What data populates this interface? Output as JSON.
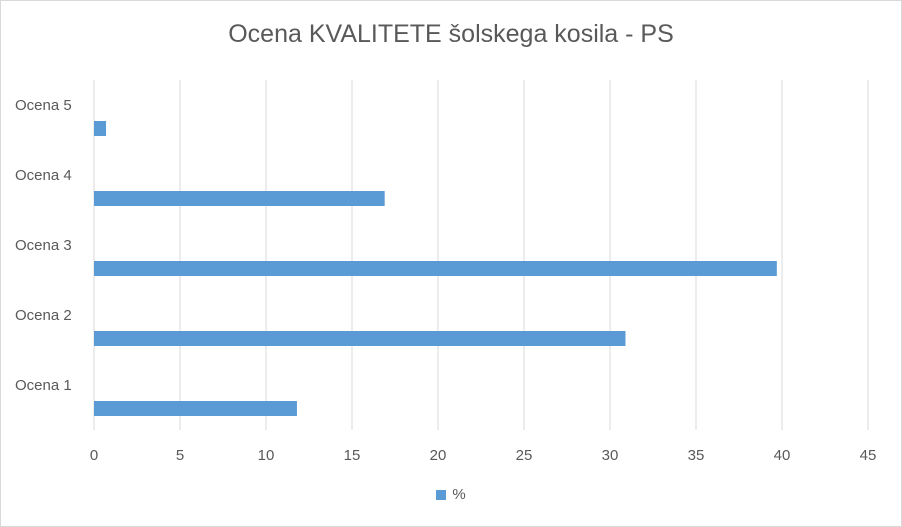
{
  "chart_data": {
    "type": "bar",
    "orientation": "horizontal",
    "title": "Ocena KVALITETE šolskega kosila - PS",
    "categories": [
      "Ocena 1",
      "Ocena 2",
      "Ocena 3",
      "Ocena 4",
      "Ocena 5"
    ],
    "series": [
      {
        "name": "%",
        "values": [
          11.8,
          30.9,
          39.7,
          16.9,
          0.7
        ],
        "color": "#5b9bd5"
      }
    ],
    "xlim": [
      0,
      45
    ],
    "xticks": [
      0,
      5,
      10,
      15,
      20,
      25,
      30,
      35,
      40,
      45
    ],
    "grid": true,
    "legend": "bottom"
  }
}
